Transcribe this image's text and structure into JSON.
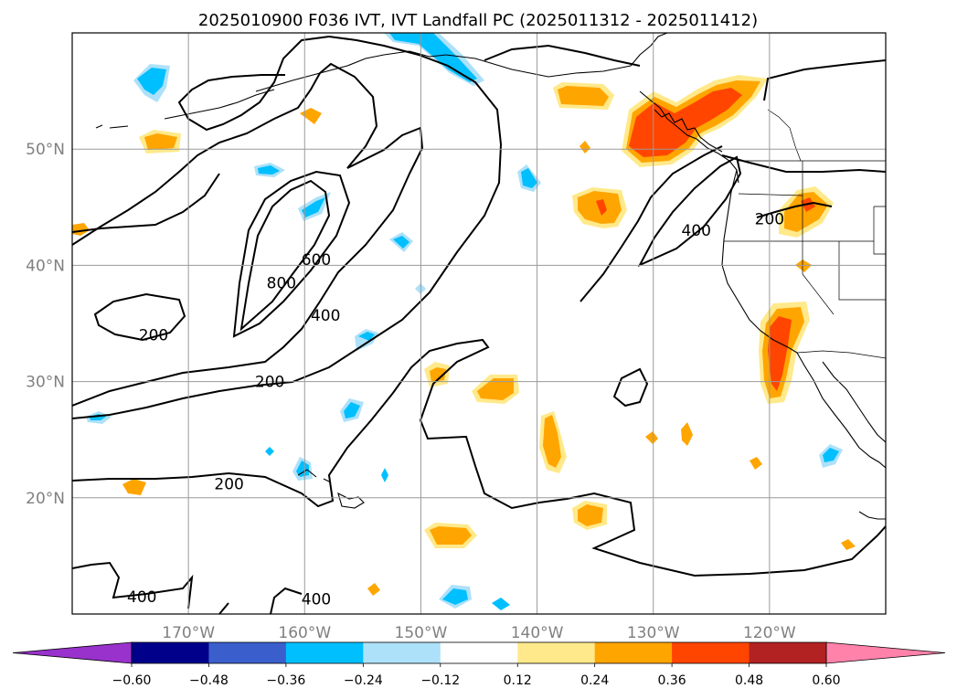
{
  "title": "2025010900 F036 IVT, IVT Landfall PC (2025011312 - 2025011412)",
  "map": {
    "lon_range": [
      -180,
      -110
    ],
    "lat_range": [
      10,
      60
    ],
    "lon_ticks": [
      {
        "lon": -170,
        "label": "170°W"
      },
      {
        "lon": -160,
        "label": "160°W"
      },
      {
        "lon": -150,
        "label": "150°W"
      },
      {
        "lon": -140,
        "label": "140°W"
      },
      {
        "lon": -130,
        "label": "130°W"
      },
      {
        "lon": -120,
        "label": "120°W"
      }
    ],
    "lat_ticks": [
      {
        "lat": 20,
        "label": "20°N"
      },
      {
        "lat": 30,
        "label": "30°N"
      },
      {
        "lat": 40,
        "label": "40°N"
      },
      {
        "lat": 50,
        "label": "50°N"
      }
    ],
    "grid": true
  },
  "contours": {
    "levels": [
      200,
      400,
      600,
      800
    ],
    "labels": [
      {
        "text": "800",
        "lon": -162.0,
        "lat": 38.5
      },
      {
        "text": "600",
        "lon": -159.0,
        "lat": 40.5
      },
      {
        "text": "400",
        "lon": -158.2,
        "lat": 35.7
      },
      {
        "text": "200",
        "lon": -163.0,
        "lat": 30.0
      },
      {
        "text": "200",
        "lon": -173.0,
        "lat": 34.0
      },
      {
        "text": "200",
        "lon": -166.5,
        "lat": 21.2
      },
      {
        "text": "400",
        "lon": -174.0,
        "lat": 11.5
      },
      {
        "text": "400",
        "lon": -159.0,
        "lat": 11.3
      },
      {
        "text": "400",
        "lon": -126.3,
        "lat": 43.0
      },
      {
        "text": "200",
        "lon": -120.0,
        "lat": 44.0
      }
    ]
  },
  "colorbar": {
    "levels": [
      -0.72,
      -0.6,
      -0.48,
      -0.36,
      -0.24,
      -0.12,
      0.12,
      0.24,
      0.36,
      0.48,
      0.6,
      0.72
    ],
    "colors": [
      "#9932CC",
      "#00008B",
      "#3A5FCD",
      "#00BFFF",
      "#ADE1F9",
      "#FFFFFF",
      "#FFE98A",
      "#FFA500",
      "#FF4500",
      "#B22222",
      "#FF82AB"
    ],
    "under_color": "#9932CC",
    "over_color": "#FF82AB",
    "tick_labels": [
      "−0.60",
      "−0.48",
      "−0.36",
      "−0.24",
      "−0.12",
      "0.12",
      "0.24",
      "0.36",
      "0.48",
      "0.60"
    ],
    "extend": "both"
  }
}
